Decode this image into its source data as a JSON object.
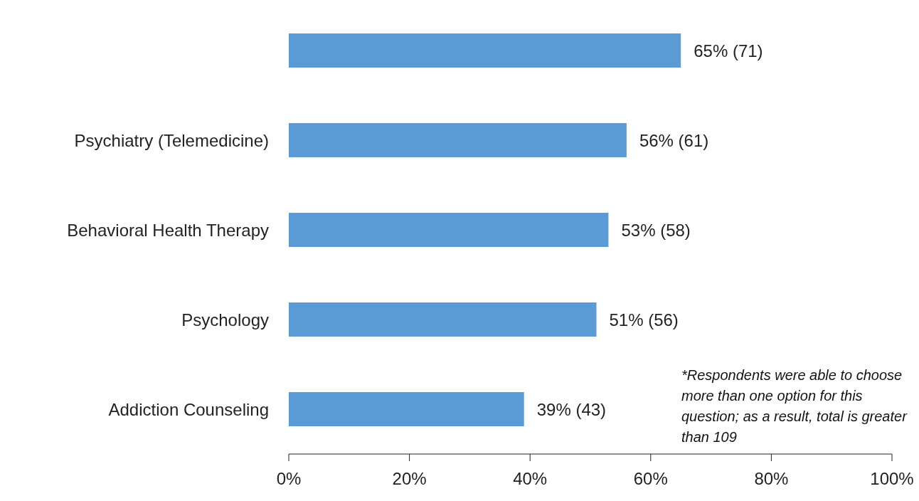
{
  "chart_data": {
    "type": "bar",
    "orientation": "horizontal",
    "categories": [
      null,
      "Psychiatry (Telemedicine)",
      "Behavioral Health Therapy",
      "Psychology",
      "Addiction Counseling"
    ],
    "values": [
      65,
      56,
      53,
      51,
      39
    ],
    "value_labels": [
      "65% (71)",
      "56% (61)",
      "53% (58)",
      "51% (56)",
      "39% (43)"
    ],
    "color": "#5b9bd5",
    "xlim": [
      0,
      100
    ],
    "xticks": [
      {
        "value": 0,
        "label": "0%"
      },
      {
        "value": 20,
        "label": "20%"
      },
      {
        "value": 40,
        "label": "40%"
      },
      {
        "value": 60,
        "label": "60%"
      },
      {
        "value": 80,
        "label": "80%"
      },
      {
        "value": 100,
        "label": "100%"
      }
    ],
    "grid": false,
    "legend": false,
    "annotations": [
      "*Respondents were able to choose more than one option for this question; as a result, total is greater than 109"
    ]
  }
}
